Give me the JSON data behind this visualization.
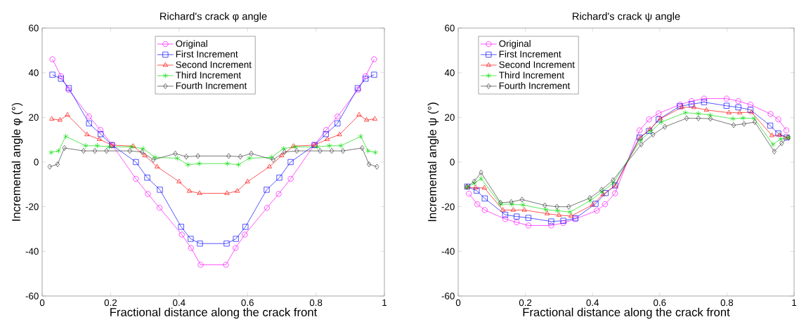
{
  "chart_data": [
    {
      "type": "line",
      "title": "Richard's crack φ angle",
      "xlabel": "Fractional distance along the crack front",
      "ylabel": "Incremental angle  φ (°)",
      "xlim": [
        0,
        1
      ],
      "ylim": [
        -60,
        60
      ],
      "xticks": [
        0,
        0.2,
        0.4,
        0.6,
        0.8,
        1
      ],
      "yticks": [
        -60,
        -40,
        -20,
        0,
        20,
        40,
        60
      ],
      "grid": false,
      "legend": "top",
      "line_style": "solid",
      "series": [
        {
          "name": "Original",
          "color": "#ff00ff",
          "marker": "circle",
          "x": [
            0.03,
            0.055,
            0.077,
            0.137,
            0.17,
            0.205,
            0.274,
            0.309,
            0.343,
            0.408,
            0.435,
            0.463,
            0.537,
            0.565,
            0.592,
            0.657,
            0.691,
            0.726,
            0.795,
            0.83,
            0.863,
            0.923,
            0.945,
            0.97
          ],
          "values": [
            46,
            38.5,
            32.4,
            20.4,
            14.4,
            7.6,
            -7.5,
            -14.3,
            -20.5,
            -32.5,
            -38.5,
            -46,
            -46,
            -38.5,
            -32.5,
            -20.5,
            -14.3,
            -7.5,
            7.6,
            14.4,
            20.4,
            32.4,
            38.5,
            46
          ]
        },
        {
          "name": "First Increment",
          "color": "#0000ff",
          "marker": "square",
          "x": [
            0.03,
            0.055,
            0.078,
            0.137,
            0.171,
            0.204,
            0.274,
            0.307,
            0.344,
            0.406,
            0.434,
            0.461,
            0.539,
            0.566,
            0.594,
            0.656,
            0.693,
            0.726,
            0.796,
            0.829,
            0.863,
            0.922,
            0.945,
            0.97
          ],
          "values": [
            39.1,
            37.3,
            33.1,
            17.3,
            12.5,
            7.6,
            0,
            -7,
            -12.4,
            -29,
            -34.4,
            -36.5,
            -36.5,
            -34.4,
            -29,
            -12.4,
            -7,
            0,
            7.6,
            12.5,
            17.3,
            33.1,
            37.3,
            39.1
          ]
        },
        {
          "name": "Second Increment",
          "color": "#ff0000",
          "marker": "triangle",
          "x": [
            0.028,
            0.052,
            0.074,
            0.131,
            0.167,
            0.204,
            0.266,
            0.3,
            0.336,
            0.4,
            0.43,
            0.46,
            0.54,
            0.57,
            0.6,
            0.664,
            0.7,
            0.734,
            0.796,
            0.833,
            0.869,
            0.926,
            0.948,
            0.972
          ],
          "values": [
            19.3,
            18.8,
            21.1,
            12.3,
            10.2,
            7.6,
            7.1,
            2.9,
            -2.1,
            -8.8,
            -13,
            -14,
            -14,
            -13,
            -8.8,
            -2.1,
            2.9,
            7.1,
            7.6,
            10.2,
            12.3,
            21.1,
            18.8,
            19.3
          ]
        },
        {
          "name": "Third Increment",
          "color": "#00dd00",
          "marker": "cross",
          "x": [
            0.026,
            0.048,
            0.069,
            0.127,
            0.161,
            0.196,
            0.261,
            0.295,
            0.33,
            0.395,
            0.426,
            0.459,
            0.541,
            0.574,
            0.605,
            0.67,
            0.705,
            0.739,
            0.804,
            0.839,
            0.873,
            0.931,
            0.952,
            0.974
          ],
          "values": [
            4.3,
            5,
            11.5,
            7.3,
            7.3,
            6.8,
            6.8,
            6,
            2.1,
            1.7,
            -1.2,
            -0.7,
            -0.7,
            -1.2,
            1.7,
            2.1,
            6,
            6.8,
            6.8,
            7.3,
            7.3,
            11.5,
            5,
            4.3
          ]
        },
        {
          "name": "Fourth Increment",
          "color": "#333333",
          "marker": "diamond",
          "x": [
            0.022,
            0.045,
            0.065,
            0.121,
            0.154,
            0.188,
            0.256,
            0.292,
            0.325,
            0.389,
            0.421,
            0.455,
            0.545,
            0.579,
            0.611,
            0.675,
            0.708,
            0.744,
            0.812,
            0.846,
            0.879,
            0.935,
            0.955,
            0.978
          ],
          "values": [
            -2.1,
            -1,
            6.3,
            5,
            5,
            5,
            5,
            4.5,
            1,
            3.8,
            2.4,
            2.7,
            2.7,
            2.4,
            3.8,
            1,
            4.5,
            5,
            5,
            5,
            5,
            6.3,
            -1,
            -2.1
          ]
        }
      ]
    },
    {
      "type": "line",
      "title": "Richard's crack ψ angle",
      "xlabel": "Fractional distance along the crack front",
      "ylabel": "Incremental angle ψ (°)",
      "xlim": [
        0,
        1
      ],
      "ylim": [
        -60,
        60
      ],
      "xticks": [
        0,
        0.2,
        0.4,
        0.6,
        0.8,
        1
      ],
      "yticks": [
        -60,
        -40,
        -20,
        0,
        20,
        40,
        60
      ],
      "grid": false,
      "legend": "top left",
      "line_style": "solid",
      "series": [
        {
          "name": "Original",
          "color": "#ff00ff",
          "marker": "circle",
          "x": [
            0.032,
            0.057,
            0.079,
            0.14,
            0.174,
            0.209,
            0.277,
            0.313,
            0.349,
            0.413,
            0.437,
            0.467,
            0.54,
            0.568,
            0.597,
            0.66,
            0.695,
            0.732,
            0.799,
            0.834,
            0.87,
            0.93,
            0.953,
            0.977
          ],
          "values": [
            -14.2,
            -18.9,
            -21.5,
            -25.5,
            -27,
            -28.4,
            -28.4,
            -27.3,
            -25.5,
            -21.7,
            -18.9,
            -14,
            14.2,
            19.1,
            21.8,
            25.7,
            27.3,
            28.4,
            28.4,
            27.3,
            25.7,
            21.5,
            19.1,
            14.2
          ]
        },
        {
          "name": "First Increment",
          "color": "#0000ff",
          "marker": "square",
          "x": [
            0.027,
            0.055,
            0.079,
            0.14,
            0.174,
            0.209,
            0.277,
            0.313,
            0.349,
            0.409,
            0.439,
            0.467,
            0.54,
            0.568,
            0.597,
            0.66,
            0.695,
            0.732,
            0.799,
            0.834,
            0.87,
            0.929,
            0.953,
            0.978
          ],
          "values": [
            -11,
            -12.8,
            -16.3,
            -23.6,
            -24.4,
            -25,
            -26.6,
            -26.3,
            -25.2,
            -18.7,
            -13.9,
            -10.5,
            11,
            13.9,
            19.1,
            25,
            25.9,
            26.8,
            25.2,
            24.5,
            23.4,
            16.3,
            12.8,
            11
          ]
        },
        {
          "name": "Second Increment",
          "color": "#ff0000",
          "marker": "triangle",
          "x": [
            0.026,
            0.052,
            0.078,
            0.133,
            0.164,
            0.197,
            0.265,
            0.3,
            0.336,
            0.4,
            0.431,
            0.467,
            0.541,
            0.571,
            0.602,
            0.666,
            0.702,
            0.739,
            0.806,
            0.838,
            0.873,
            0.934,
            0.957,
            0.98
          ],
          "values": [
            -11.3,
            -11.5,
            -11.6,
            -21.5,
            -21.5,
            -21.5,
            -23.1,
            -23.8,
            -24.2,
            -19.2,
            -14.5,
            -10.7,
            10.8,
            14.7,
            19.4,
            24.5,
            24.5,
            23.3,
            22.1,
            22.1,
            22.3,
            11.9,
            12.1,
            11
          ]
        },
        {
          "name": "Third Increment",
          "color": "#00dd00",
          "marker": "cross",
          "x": [
            0.026,
            0.048,
            0.068,
            0.126,
            0.16,
            0.193,
            0.261,
            0.296,
            0.333,
            0.393,
            0.428,
            0.461,
            0.543,
            0.573,
            0.605,
            0.676,
            0.715,
            0.75,
            0.818,
            0.848,
            0.881,
            0.937,
            0.96,
            0.983
          ],
          "values": [
            -11.3,
            -9.5,
            -7.4,
            -18.9,
            -18.9,
            -19.2,
            -21.3,
            -21.8,
            -22.4,
            -17.3,
            -13.3,
            -9.5,
            9.8,
            13.7,
            17.9,
            22.1,
            21.7,
            21,
            19.4,
            19.7,
            19.6,
            7.9,
            10.3,
            11
          ]
        },
        {
          "name": "Fourth Increment",
          "color": "#333333",
          "marker": "diamond",
          "x": [
            0.026,
            0.048,
            0.068,
            0.126,
            0.158,
            0.19,
            0.258,
            0.294,
            0.329,
            0.392,
            0.427,
            0.461,
            0.545,
            0.58,
            0.615,
            0.68,
            0.715,
            0.751,
            0.82,
            0.851,
            0.883,
            0.941,
            0.963,
            0.983
          ],
          "values": [
            -11,
            -8.7,
            -4.7,
            -18.2,
            -17.9,
            -16.8,
            -19.4,
            -20,
            -20,
            -16.1,
            -12.4,
            -8.1,
            7.9,
            12.3,
            15.8,
            19.6,
            19.6,
            19.4,
            16.5,
            17.1,
            17.9,
            4.7,
            8.4,
            11
          ]
        }
      ]
    }
  ]
}
